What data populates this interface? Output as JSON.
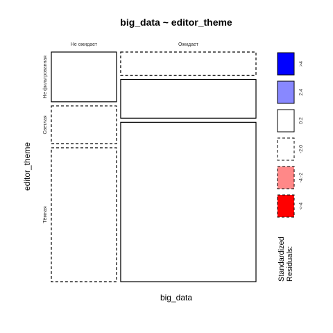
{
  "chart_data": {
    "type": "mosaic",
    "title": "big_data ~ editor_theme",
    "xlabel": "big_data",
    "ylabel": "editor_theme",
    "x_categories": [
      "Не ожидает",
      "Ожидает"
    ],
    "y_categories": [
      "Не фильтрованная",
      "Светлая",
      "Тёмная"
    ],
    "column_fractions": [
      0.325,
      0.675
    ],
    "cells": [
      {
        "x": "Не ожидает",
        "y": "Не фильтрованная",
        "fraction": 0.225,
        "residual_band": "0:2"
      },
      {
        "x": "Не ожидает",
        "y": "Светлая",
        "fraction": 0.17,
        "residual_band": "-2:0"
      },
      {
        "x": "Не ожидает",
        "y": "Тёмная",
        "fraction": 0.605,
        "residual_band": "-2:0"
      },
      {
        "x": "Ожидает",
        "y": "Не фильтрованная",
        "fraction": 0.105,
        "residual_band": "-2:0"
      },
      {
        "x": "Ожидает",
        "y": "Светлая",
        "fraction": 0.175,
        "residual_band": "0:2"
      },
      {
        "x": "Ожидает",
        "y": "Тёмная",
        "fraction": 0.72,
        "residual_band": "0:2"
      }
    ],
    "legend": {
      "title_lines": [
        "Standardized",
        "Residuals:"
      ],
      "entries": [
        {
          "label": ">4",
          "color": "#0000ff",
          "dashed": false
        },
        {
          "label": "2:4",
          "color": "#8888ff",
          "dashed": false
        },
        {
          "label": "0:2",
          "color": "#ffffff",
          "dashed": false
        },
        {
          "label": "-2:0",
          "color": "#ffffff",
          "dashed": true
        },
        {
          "label": "-4:-2",
          "color": "#ff8888",
          "dashed": true
        },
        {
          "label": "<-4",
          "color": "#ff0000",
          "dashed": true
        }
      ]
    }
  }
}
